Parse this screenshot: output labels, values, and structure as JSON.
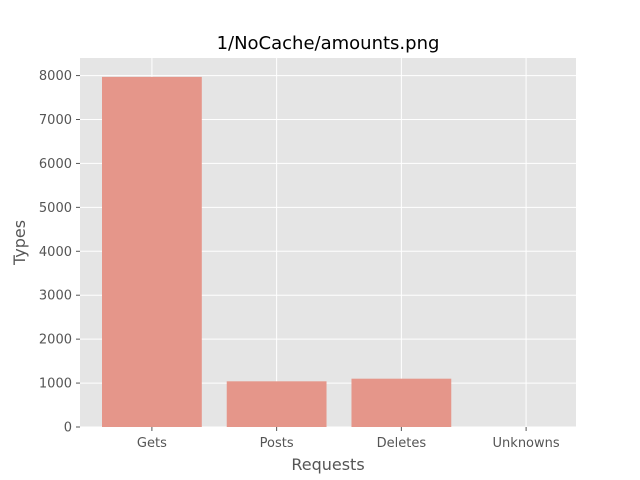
{
  "chart_data": {
    "type": "bar",
    "title": "1/NoCache/amounts.png",
    "xlabel": "Requests",
    "ylabel": "Types",
    "categories": [
      "Gets",
      "Posts",
      "Deletes",
      "Unknowns"
    ],
    "values": [
      7970,
      1040,
      1100,
      0
    ],
    "ylim": [
      0,
      8400
    ],
    "yticks": [
      0,
      1000,
      2000,
      3000,
      4000,
      5000,
      6000,
      7000,
      8000
    ],
    "grid": true,
    "style": "ggplot",
    "colors": {
      "bar": "#e5968a",
      "background": "#e5e5e5",
      "grid": "#ffffff",
      "text": "#555555"
    }
  }
}
